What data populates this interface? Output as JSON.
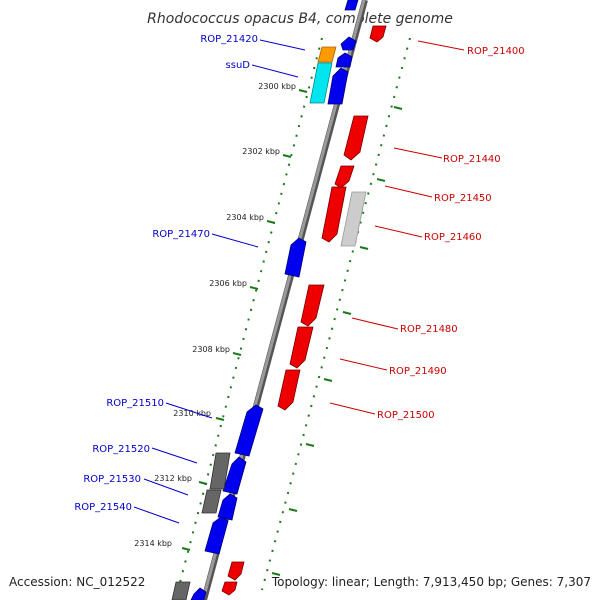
{
  "title": "Rhodococcus opacus B4, complete genome",
  "footer": {
    "accession": "Accession: NC_012522",
    "summary": "Topology: linear; Length: 7,913,450 bp; Genes: 7,307"
  },
  "ticks": [
    "2300 kbp",
    "2302 kbp",
    "2304 kbp",
    "2306 kbp",
    "2308 kbp",
    "2310 kbp",
    "2312 kbp",
    "2314 kbp"
  ],
  "gene_labels_left": [
    "ROP_21420",
    "ssuD",
    "ROP_21470",
    "ROP_21510",
    "ROP_21520",
    "ROP_21530",
    "ROP_21540"
  ],
  "gene_labels_right": [
    "ROP_21400",
    "ROP_21440",
    "ROP_21450",
    "ROP_21460",
    "ROP_21480",
    "ROP_21490",
    "ROP_21500"
  ],
  "colors": {
    "forward_gene": "#0000ee",
    "reverse_gene": "#ee0000",
    "pseudo_gene": "#666666",
    "unknown_gene": "#cccccc",
    "highlight_orange": "#ff9900",
    "highlight_cyan": "#00e5ee",
    "left_label": "#0000cc",
    "right_label": "#cc0000",
    "tick_mark": "#1a7a1a",
    "backbone": "#888888"
  }
}
